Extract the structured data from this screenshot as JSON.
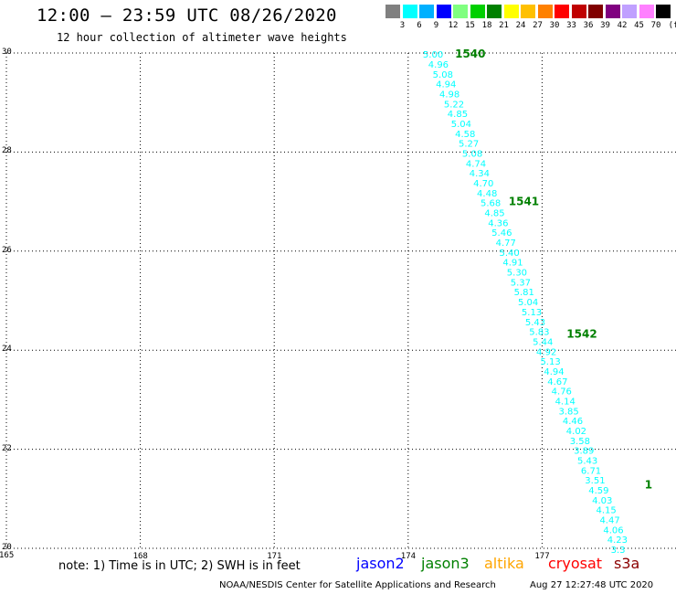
{
  "header": {
    "title": "12:00 – 23:59 UTC 08/26/2020",
    "subtitle": "12 hour collection of altimeter wave heights"
  },
  "colorbar": {
    "unit": "(ft)",
    "colors": [
      "#808080",
      "#00ffff",
      "#00b0ff",
      "#0000ff",
      "#80ff80",
      "#00d000",
      "#008000",
      "#ffff00",
      "#ffc000",
      "#ff8000",
      "#ff0000",
      "#c00000",
      "#800000",
      "#800080",
      "#c0a0ff",
      "#ff80ff",
      "#000000"
    ],
    "labels": [
      "3",
      "6",
      "9",
      "12",
      "15",
      "18",
      "21",
      "24",
      "27",
      "30",
      "33",
      "36",
      "39",
      "42",
      "45",
      "70"
    ]
  },
  "map": {
    "lon_ticks": [
      "165",
      "168",
      "171",
      "174",
      "177"
    ],
    "lat_ticks": [
      "30",
      "28",
      "26",
      "24",
      "22",
      "20"
    ],
    "lon_range": [
      165,
      180
    ],
    "lat_range": [
      20,
      30
    ],
    "grid": "dotted",
    "obs_color": "#00ffff",
    "pass_color": "#008000"
  },
  "track": [
    {
      "lon": 174.33,
      "lat": 29.98,
      "swh": "5.00"
    },
    {
      "lon": 174.45,
      "lat": 29.78,
      "swh": "4.96"
    },
    {
      "lon": 174.55,
      "lat": 29.58,
      "swh": "5.08"
    },
    {
      "lon": 174.62,
      "lat": 29.38,
      "swh": "4.94"
    },
    {
      "lon": 174.7,
      "lat": 29.18,
      "swh": "4.98"
    },
    {
      "lon": 174.8,
      "lat": 28.98,
      "swh": "5.22"
    },
    {
      "lon": 174.88,
      "lat": 28.78,
      "swh": "4.85"
    },
    {
      "lon": 174.96,
      "lat": 28.58,
      "swh": "5.04"
    },
    {
      "lon": 175.05,
      "lat": 28.38,
      "swh": "4.58"
    },
    {
      "lon": 175.13,
      "lat": 28.18,
      "swh": "5.27"
    },
    {
      "lon": 175.21,
      "lat": 27.98,
      "swh": "5.08"
    },
    {
      "lon": 175.29,
      "lat": 27.78,
      "swh": "4.74"
    },
    {
      "lon": 175.37,
      "lat": 27.58,
      "swh": "4.34"
    },
    {
      "lon": 175.46,
      "lat": 27.38,
      "swh": "4.70"
    },
    {
      "lon": 175.54,
      "lat": 27.18,
      "swh": "4.48"
    },
    {
      "lon": 175.62,
      "lat": 26.98,
      "swh": "5.68"
    },
    {
      "lon": 175.71,
      "lat": 26.78,
      "swh": "4.85"
    },
    {
      "lon": 175.79,
      "lat": 26.58,
      "swh": "4.36"
    },
    {
      "lon": 175.87,
      "lat": 26.38,
      "swh": "5.46"
    },
    {
      "lon": 175.96,
      "lat": 26.18,
      "swh": "4.77"
    },
    {
      "lon": 176.04,
      "lat": 25.98,
      "swh": "5.40"
    },
    {
      "lon": 176.12,
      "lat": 25.78,
      "swh": "4.91"
    },
    {
      "lon": 176.21,
      "lat": 25.58,
      "swh": "5.30"
    },
    {
      "lon": 176.29,
      "lat": 25.38,
      "swh": "5.37"
    },
    {
      "lon": 176.37,
      "lat": 25.18,
      "swh": "5.81"
    },
    {
      "lon": 176.46,
      "lat": 24.98,
      "swh": "5.04"
    },
    {
      "lon": 176.54,
      "lat": 24.78,
      "swh": "5.13"
    },
    {
      "lon": 176.62,
      "lat": 24.58,
      "swh": "5.43"
    },
    {
      "lon": 176.71,
      "lat": 24.38,
      "swh": "5.83"
    },
    {
      "lon": 176.79,
      "lat": 24.18,
      "swh": "5.44"
    },
    {
      "lon": 176.87,
      "lat": 23.98,
      "swh": "4.92"
    },
    {
      "lon": 176.96,
      "lat": 23.78,
      "swh": "5.13"
    },
    {
      "lon": 177.04,
      "lat": 23.58,
      "swh": "4.94"
    },
    {
      "lon": 177.12,
      "lat": 23.38,
      "swh": "4.67"
    },
    {
      "lon": 177.21,
      "lat": 23.18,
      "swh": "4.76"
    },
    {
      "lon": 177.29,
      "lat": 22.98,
      "swh": "4.14"
    },
    {
      "lon": 177.37,
      "lat": 22.78,
      "swh": "3.85"
    },
    {
      "lon": 177.46,
      "lat": 22.58,
      "swh": "4.46"
    },
    {
      "lon": 177.54,
      "lat": 22.38,
      "swh": "4.02"
    },
    {
      "lon": 177.62,
      "lat": 22.18,
      "swh": "3.58"
    },
    {
      "lon": 177.71,
      "lat": 21.98,
      "swh": "3.89"
    },
    {
      "lon": 177.79,
      "lat": 21.78,
      "swh": "5.43"
    },
    {
      "lon": 177.87,
      "lat": 21.58,
      "swh": "6.71"
    },
    {
      "lon": 177.96,
      "lat": 21.38,
      "swh": "3.51"
    },
    {
      "lon": 178.04,
      "lat": 21.18,
      "swh": "4.59"
    },
    {
      "lon": 178.12,
      "lat": 20.98,
      "swh": "4.03"
    },
    {
      "lon": 178.21,
      "lat": 20.78,
      "swh": "4.15"
    },
    {
      "lon": 178.29,
      "lat": 20.58,
      "swh": "4.47"
    },
    {
      "lon": 178.37,
      "lat": 20.38,
      "swh": "4.06"
    },
    {
      "lon": 178.46,
      "lat": 20.18,
      "swh": "4.23"
    },
    {
      "lon": 178.54,
      "lat": 19.98,
      "swh": "3.3"
    }
  ],
  "pass_labels": [
    {
      "lon": 175.05,
      "lat": 29.98,
      "text": "1540"
    },
    {
      "lon": 176.25,
      "lat": 27.0,
      "text": "1541"
    },
    {
      "lon": 177.55,
      "lat": 24.33,
      "text": "1542"
    },
    {
      "lon": 179.3,
      "lat": 21.28,
      "text": "1"
    }
  ],
  "footer": {
    "note": "note: 1) Time is in UTC; 2) SWH is in feet",
    "satellites": [
      {
        "name": "jason2",
        "color": "#0000ff"
      },
      {
        "name": "jason3",
        "color": "#008000"
      },
      {
        "name": "altika",
        "color": "#ffa500"
      },
      {
        "name": "cryosat",
        "color": "#ff0000"
      },
      {
        "name": "s3a",
        "color": "#8b0000"
      }
    ],
    "credit": "NOAA/NESDIS Center for Satellite Applications and Research",
    "timestamp": "Aug 27 12:27:48 UTC 2020"
  }
}
